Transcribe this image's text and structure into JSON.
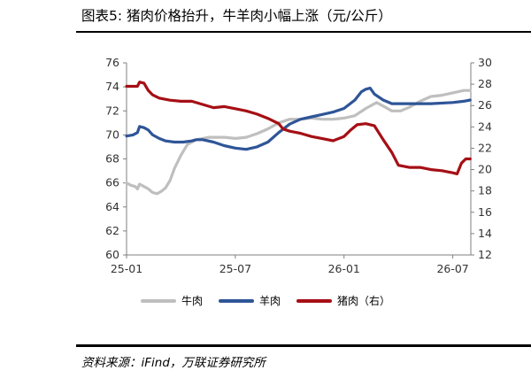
{
  "title": "图表5:  猪肉价格抬升，牛羊肉小幅上涨（元/公斤）",
  "source": "资料来源：iFind，万联证券研究所",
  "chart_data": {
    "type": "line",
    "x_ticks": [
      "25-01",
      "25-07",
      "26-01",
      "26-07"
    ],
    "x_range": [
      2025.0,
      2026.583
    ],
    "ylim_left": [
      60,
      76
    ],
    "yticks_left": [
      "60",
      "62",
      "64",
      "66",
      "68",
      "70",
      "72",
      "74",
      "76"
    ],
    "ylim_right": [
      12,
      30
    ],
    "yticks_right": [
      "12",
      "14",
      "16",
      "18",
      "20",
      "22",
      "24",
      "26",
      "28",
      "30"
    ],
    "legend_position": "bottom",
    "grid": false,
    "series": [
      {
        "name": "牛肉",
        "axis": "left",
        "color": "#bfbfbf",
        "points": [
          [
            2025.0,
            66.0
          ],
          [
            2025.02,
            65.8
          ],
          [
            2025.04,
            65.7
          ],
          [
            2025.05,
            65.5
          ],
          [
            2025.06,
            65.9
          ],
          [
            2025.08,
            65.7
          ],
          [
            2025.1,
            65.5
          ],
          [
            2025.12,
            65.2
          ],
          [
            2025.14,
            65.1
          ],
          [
            2025.16,
            65.3
          ],
          [
            2025.18,
            65.6
          ],
          [
            2025.2,
            66.2
          ],
          [
            2025.22,
            67.2
          ],
          [
            2025.25,
            68.3
          ],
          [
            2025.28,
            69.2
          ],
          [
            2025.32,
            69.6
          ],
          [
            2025.38,
            69.8
          ],
          [
            2025.45,
            69.8
          ],
          [
            2025.5,
            69.7
          ],
          [
            2025.55,
            69.8
          ],
          [
            2025.6,
            70.1
          ],
          [
            2025.65,
            70.5
          ],
          [
            2025.7,
            71.0
          ],
          [
            2025.75,
            71.3
          ],
          [
            2025.8,
            71.3
          ],
          [
            2025.85,
            71.4
          ],
          [
            2025.9,
            71.3
          ],
          [
            2025.95,
            71.3
          ],
          [
            2026.0,
            71.4
          ],
          [
            2026.05,
            71.6
          ],
          [
            2026.1,
            72.2
          ],
          [
            2026.15,
            72.7
          ],
          [
            2026.18,
            72.4
          ],
          [
            2026.22,
            72.0
          ],
          [
            2026.26,
            72.0
          ],
          [
            2026.3,
            72.3
          ],
          [
            2026.35,
            72.8
          ],
          [
            2026.4,
            73.2
          ],
          [
            2026.45,
            73.3
          ],
          [
            2026.5,
            73.5
          ],
          [
            2026.55,
            73.7
          ],
          [
            2026.58,
            73.7
          ]
        ]
      },
      {
        "name": "羊肉",
        "axis": "left",
        "color": "#2e5597",
        "points": [
          [
            2025.0,
            69.9
          ],
          [
            2025.03,
            70.0
          ],
          [
            2025.05,
            70.2
          ],
          [
            2025.06,
            70.7
          ],
          [
            2025.08,
            70.6
          ],
          [
            2025.1,
            70.4
          ],
          [
            2025.12,
            70.0
          ],
          [
            2025.15,
            69.7
          ],
          [
            2025.18,
            69.5
          ],
          [
            2025.22,
            69.4
          ],
          [
            2025.26,
            69.4
          ],
          [
            2025.3,
            69.5
          ],
          [
            2025.32,
            69.6
          ],
          [
            2025.35,
            69.6
          ],
          [
            2025.4,
            69.4
          ],
          [
            2025.45,
            69.1
          ],
          [
            2025.5,
            68.9
          ],
          [
            2025.55,
            68.8
          ],
          [
            2025.6,
            69.0
          ],
          [
            2025.65,
            69.4
          ],
          [
            2025.7,
            70.2
          ],
          [
            2025.75,
            70.9
          ],
          [
            2025.8,
            71.3
          ],
          [
            2025.85,
            71.5
          ],
          [
            2025.9,
            71.7
          ],
          [
            2025.95,
            71.9
          ],
          [
            2026.0,
            72.2
          ],
          [
            2026.05,
            72.9
          ],
          [
            2026.08,
            73.6
          ],
          [
            2026.1,
            73.8
          ],
          [
            2026.12,
            73.9
          ],
          [
            2026.14,
            73.4
          ],
          [
            2026.18,
            72.9
          ],
          [
            2026.22,
            72.6
          ],
          [
            2026.3,
            72.6
          ],
          [
            2026.4,
            72.6
          ],
          [
            2026.5,
            72.7
          ],
          [
            2026.55,
            72.8
          ],
          [
            2026.58,
            72.9
          ]
        ]
      },
      {
        "name": "猪肉（右）",
        "axis": "right",
        "color": "#a50f15",
        "points": [
          [
            2025.0,
            27.8
          ],
          [
            2025.03,
            27.8
          ],
          [
            2025.05,
            27.8
          ],
          [
            2025.06,
            28.2
          ],
          [
            2025.08,
            28.1
          ],
          [
            2025.1,
            27.4
          ],
          [
            2025.12,
            27.0
          ],
          [
            2025.15,
            26.7
          ],
          [
            2025.2,
            26.5
          ],
          [
            2025.25,
            26.4
          ],
          [
            2025.3,
            26.4
          ],
          [
            2025.35,
            26.1
          ],
          [
            2025.4,
            25.8
          ],
          [
            2025.45,
            25.9
          ],
          [
            2025.5,
            25.7
          ],
          [
            2025.55,
            25.5
          ],
          [
            2025.6,
            25.2
          ],
          [
            2025.65,
            24.8
          ],
          [
            2025.7,
            24.3
          ],
          [
            2025.72,
            23.8
          ],
          [
            2025.75,
            23.6
          ],
          [
            2025.8,
            23.4
          ],
          [
            2025.85,
            23.1
          ],
          [
            2025.9,
            22.9
          ],
          [
            2025.95,
            22.7
          ],
          [
            2026.0,
            23.1
          ],
          [
            2026.03,
            23.7
          ],
          [
            2026.06,
            24.2
          ],
          [
            2026.1,
            24.3
          ],
          [
            2026.14,
            24.1
          ],
          [
            2026.18,
            22.8
          ],
          [
            2026.22,
            21.6
          ],
          [
            2026.25,
            20.4
          ],
          [
            2026.3,
            20.2
          ],
          [
            2026.35,
            20.2
          ],
          [
            2026.4,
            20.0
          ],
          [
            2026.45,
            19.9
          ],
          [
            2026.5,
            19.7
          ],
          [
            2026.52,
            19.6
          ],
          [
            2026.54,
            20.6
          ],
          [
            2026.56,
            21.0
          ],
          [
            2026.58,
            21.0
          ]
        ]
      }
    ]
  }
}
